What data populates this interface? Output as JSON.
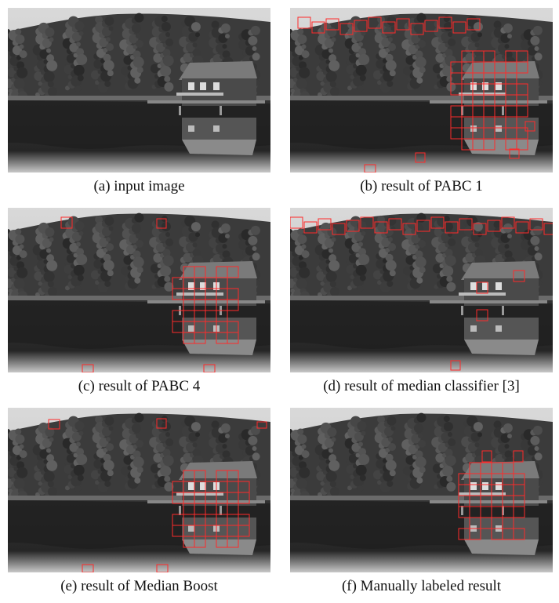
{
  "figure": {
    "panels": [
      {
        "caption": "(a) input image"
      },
      {
        "caption": "(b) result of PABC 1"
      },
      {
        "caption": "(c) result of PABC 4"
      },
      {
        "caption": "(d) result of median classifier [3]"
      },
      {
        "caption": "(e) result of Median Boost"
      },
      {
        "caption": "(f) Manually labeled result"
      }
    ]
  }
}
